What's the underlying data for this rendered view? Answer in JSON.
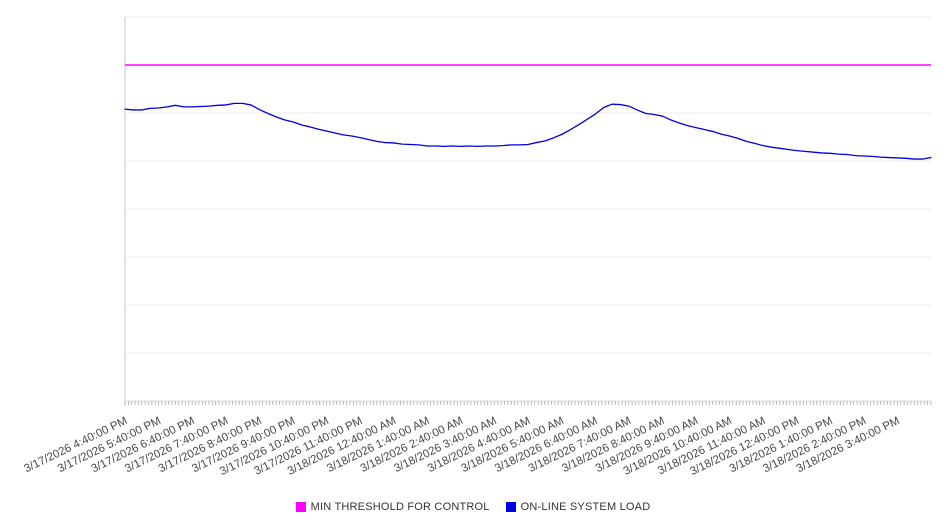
{
  "chart_data": {
    "type": "line",
    "title": "",
    "xlabel": "",
    "ylabel": "",
    "ylim": [
      0,
      100
    ],
    "y_axis_labels_visible": false,
    "grid": true,
    "horizontal_gridline_count": 9,
    "x_minor_tick_count": 240,
    "legend_position": "bottom-center",
    "x_tick_labels": [
      "3/17/2026 4:40:00 PM",
      "3/17/2026 5:40:00 PM",
      "3/17/2026 6:40:00 PM",
      "3/17/2026 7:40:00 PM",
      "3/17/2026 8:40:00 PM",
      "3/17/2026 9:40:00 PM",
      "3/17/2026 10:40:00 PM",
      "3/17/2026 11:40:00 PM",
      "3/18/2026 12:40:00 AM",
      "3/18/2026 1:40:00 AM",
      "3/18/2026 2:40:00 AM",
      "3/18/2026 3:40:00 AM",
      "3/18/2026 4:40:00 AM",
      "3/18/2026 5:40:00 AM",
      "3/18/2026 6:40:00 AM",
      "3/18/2026 7:40:00 AM",
      "3/18/2026 8:40:00 AM",
      "3/18/2026 9:40:00 AM",
      "3/18/2026 10:40:00 AM",
      "3/18/2026 11:40:00 AM",
      "3/18/2026 12:40:00 PM",
      "3/18/2026 1:40:00 PM",
      "3/18/2026 2:40:00 PM",
      "3/18/2026 3:40:00 PM"
    ],
    "series": [
      {
        "name": "MIN THRESHOLD FOR CONTROL",
        "type": "threshold",
        "color": "#ff00ff",
        "value": 87.5
      },
      {
        "name": "ON-LINE SYSTEM LOAD",
        "type": "line",
        "color": "#0000e6",
        "values": [
          76.0,
          75.8,
          75.8,
          76.2,
          76.3,
          76.6,
          77.0,
          76.6,
          76.6,
          76.7,
          76.8,
          77.0,
          77.1,
          77.5,
          77.5,
          77.1,
          75.9,
          74.9,
          74.0,
          73.2,
          72.7,
          71.9,
          71.4,
          70.8,
          70.3,
          69.8,
          69.3,
          69.0,
          68.6,
          68.1,
          67.6,
          67.3,
          67.2,
          66.9,
          66.8,
          66.7,
          66.4,
          66.4,
          66.3,
          66.4,
          66.3,
          66.4,
          66.3,
          66.4,
          66.4,
          66.5,
          66.7,
          66.7,
          66.8,
          67.3,
          67.7,
          68.5,
          69.4,
          70.6,
          71.9,
          73.3,
          74.7,
          76.4,
          77.3,
          77.2,
          76.8,
          75.8,
          74.9,
          74.6,
          74.2,
          73.2,
          72.4,
          71.7,
          71.2,
          70.7,
          70.2,
          69.5,
          69.0,
          68.4,
          67.6,
          67.1,
          66.5,
          66.1,
          65.8,
          65.5,
          65.2,
          65.0,
          64.8,
          64.6,
          64.5,
          64.3,
          64.2,
          63.9,
          63.8,
          63.7,
          63.5,
          63.4,
          63.3,
          63.2,
          63.0,
          63.0,
          63.4
        ]
      }
    ],
    "colors": {
      "gridline": "#ededed",
      "bottom_axis_line": "#dcdcdc",
      "left_axis_line": "#c8c8c8",
      "minor_tick": "#aaaaaa",
      "tick_label_text": "#484848"
    }
  },
  "legend": {
    "items": [
      {
        "label": "MIN THRESHOLD FOR CONTROL",
        "color": "#ff00ff"
      },
      {
        "label": "ON-LINE SYSTEM LOAD",
        "color": "#0000e6"
      }
    ]
  }
}
